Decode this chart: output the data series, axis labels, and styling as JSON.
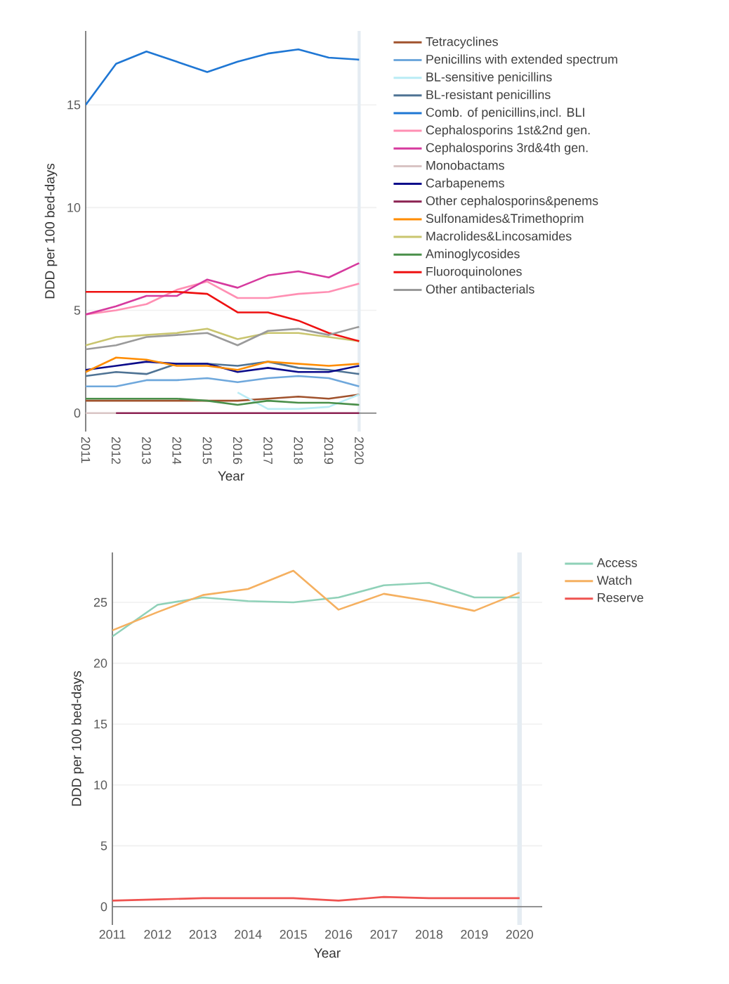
{
  "chart_data": [
    {
      "type": "line",
      "xlabel": "Year",
      "ylabel": "DDD per 100 bed-days",
      "x": [
        2011,
        2012,
        2013,
        2014,
        2015,
        2016,
        2017,
        2018,
        2019,
        2020
      ],
      "xlim": [
        2011,
        2020.57
      ],
      "xticks": [
        2011,
        2012,
        2013,
        2014,
        2015,
        2016,
        2017,
        2018,
        2019,
        2020
      ],
      "ylim": [
        -0.9,
        18.6
      ],
      "yticks": [
        0,
        5,
        10,
        15
      ],
      "grid": "y",
      "legend": "right",
      "bands": [
        {
          "axis": "x",
          "from": 2019.95,
          "to": 2020.05,
          "color": "#e5ecf2"
        }
      ],
      "series": [
        {
          "name": "Tetracyclines",
          "color": "#a0522d",
          "values": [
            0.6,
            0.6,
            0.6,
            0.6,
            0.6,
            0.6,
            0.7,
            0.8,
            0.7,
            0.9
          ]
        },
        {
          "name": "Penicillins with extended spectrum",
          "color": "#6fa8dc",
          "values": [
            1.3,
            1.3,
            1.6,
            1.6,
            1.7,
            1.5,
            1.7,
            1.8,
            1.7,
            1.3
          ]
        },
        {
          "name": "BL-sensitive penicillins",
          "color": "#b9ecf5",
          "values": [
            null,
            null,
            null,
            null,
            null,
            1.0,
            0.2,
            0.2,
            0.3,
            0.9
          ]
        },
        {
          "name": "BL-resistant penicillins",
          "color": "#4f7394",
          "values": [
            1.8,
            2.0,
            1.9,
            2.4,
            2.4,
            2.3,
            2.5,
            2.2,
            2.1,
            1.9
          ]
        },
        {
          "name": "Comb. of penicillins,incl. BLI",
          "color": "#1f77d4",
          "values": [
            15.0,
            17.0,
            17.6,
            17.1,
            16.6,
            17.1,
            17.5,
            17.7,
            17.3,
            17.2
          ]
        },
        {
          "name": "Cephalosporins 1st&2nd gen.",
          "color": "#ff8fb3",
          "values": [
            4.8,
            5.0,
            5.3,
            6.0,
            6.4,
            5.6,
            5.6,
            5.8,
            5.9,
            6.3
          ]
        },
        {
          "name": "Cephalosporins 3rd&4th gen.",
          "color": "#d63a9e",
          "values": [
            4.8,
            5.2,
            5.7,
            5.7,
            6.5,
            6.1,
            6.7,
            6.9,
            6.6,
            7.3
          ]
        },
        {
          "name": "Monobactams",
          "color": "#d9c4c4",
          "values": [
            0.0,
            0.0,
            null,
            null,
            null,
            null,
            null,
            null,
            null,
            null
          ]
        },
        {
          "name": "Carbapenems",
          "color": "#0b0b8a",
          "values": [
            2.1,
            2.3,
            2.5,
            2.4,
            2.4,
            2.0,
            2.2,
            2.0,
            2.0,
            2.3
          ]
        },
        {
          "name": "Other cephalosporins&penems",
          "color": "#8b2252",
          "values": [
            null,
            0.0,
            0.0,
            0.0,
            0.0,
            0.0,
            0.0,
            0.0,
            0.0,
            0.0
          ]
        },
        {
          "name": "Sulfonamides&Trimethoprim",
          "color": "#ff8c00",
          "values": [
            2.0,
            2.7,
            2.6,
            2.3,
            2.3,
            2.1,
            2.5,
            2.4,
            2.3,
            2.4
          ]
        },
        {
          "name": "Macrolides&Lincosamides",
          "color": "#c9c56f",
          "values": [
            3.3,
            3.7,
            3.8,
            3.9,
            4.1,
            3.6,
            3.9,
            3.9,
            3.7,
            3.5
          ]
        },
        {
          "name": "Aminoglycosides",
          "color": "#4a8f4a",
          "values": [
            0.7,
            0.7,
            0.7,
            0.7,
            0.6,
            0.4,
            0.6,
            0.5,
            0.5,
            0.4
          ]
        },
        {
          "name": "Fluoroquinolones",
          "color": "#ee1111",
          "values": [
            5.9,
            5.9,
            5.9,
            5.9,
            5.8,
            4.9,
            4.9,
            4.5,
            3.9,
            3.5
          ]
        },
        {
          "name": "Other antibacterials",
          "color": "#9a9a9a",
          "values": [
            3.1,
            3.3,
            3.7,
            3.8,
            3.9,
            3.3,
            4.0,
            4.1,
            3.8,
            4.2
          ]
        }
      ]
    },
    {
      "type": "line",
      "xlabel": "Year",
      "ylabel": "DDD per 100 bed-days",
      "x": [
        2011,
        2012,
        2013,
        2014,
        2015,
        2016,
        2017,
        2018,
        2019,
        2020
      ],
      "xlim": [
        2011,
        2020.5
      ],
      "xticks": [
        2011,
        2012,
        2013,
        2014,
        2015,
        2016,
        2017,
        2018,
        2019,
        2020
      ],
      "ylim": [
        -1.5,
        29.1
      ],
      "yticks": [
        0,
        5,
        10,
        15,
        20,
        25
      ],
      "grid": "y",
      "legend": "right",
      "bands": [
        {
          "axis": "x",
          "from": 2019.95,
          "to": 2020.05,
          "color": "#e5ecf2"
        }
      ],
      "series": [
        {
          "name": "Access",
          "color": "#8fd1b8",
          "values": [
            22.2,
            24.8,
            25.4,
            25.1,
            25.0,
            25.4,
            26.4,
            26.6,
            25.4,
            25.4
          ]
        },
        {
          "name": "Watch",
          "color": "#f5b060",
          "values": [
            22.7,
            24.2,
            25.6,
            26.1,
            27.6,
            24.4,
            25.7,
            25.1,
            24.3,
            25.8
          ]
        },
        {
          "name": "Reserve",
          "color": "#ef5350",
          "values": [
            0.5,
            0.6,
            0.7,
            0.7,
            0.7,
            0.5,
            0.8,
            0.7,
            0.7,
            0.7
          ]
        }
      ]
    }
  ]
}
